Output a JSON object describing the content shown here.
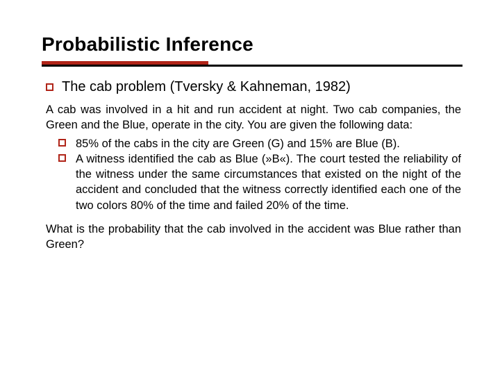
{
  "colors": {
    "rule_red": "#b02418",
    "rule_black": "#000000",
    "bullet_top": "#b02418",
    "bullet_sub": "#b02418",
    "text": "#000000",
    "background": "#ffffff"
  },
  "typography": {
    "title_fontsize": 28,
    "title_weight": "bold",
    "sub_fontsize": 20,
    "body_fontsize": 16.5,
    "line_height": 1.35,
    "font_family": "Verdana"
  },
  "title": "Probabilistic Inference",
  "subheading": "The cab problem (Tversky & Kahneman, 1982)",
  "intro": "A cab was involved in a hit and run accident at night. Two cab companies, the Green and the Blue, operate in the city. You are given the following data:",
  "bullets": [
    "85% of the cabs in the city are Green (G) and 15% are Blue (B).",
    "A witness identified the cab as Blue (»B«). The court tested the reliability of the witness under the same cir­cumstances that existed on the night of the accident and concluded that the witness correctly identified each one of the two colors 80% of the time and failed 20% of the time."
  ],
  "question": "What is the probability that the cab involved in the accident was Blue rather than Green?"
}
